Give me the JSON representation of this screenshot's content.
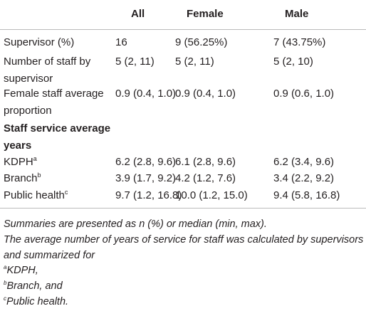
{
  "table": {
    "columns": [
      "All",
      "Female",
      "Male"
    ],
    "rows": [
      {
        "label": "Supervisor (%)",
        "values": [
          "16",
          "9 (56.25%)",
          "7 (43.75%)"
        ]
      },
      {
        "label": "Number of staff by supervisor",
        "values": [
          "5 (2, 11)",
          "5 (2, 11)",
          "5 (2, 10)"
        ]
      },
      {
        "label": "Female staff average proportion",
        "values": [
          "0.9 (0.4, 1.0)",
          "0.9 (0.4, 1.0)",
          "0.9 (0.6, 1.0)"
        ]
      },
      {
        "label": "Staff service average years",
        "section": true
      },
      {
        "label": "KDPH",
        "sup": "a",
        "values": [
          "6.2 (2.8, 9.6)",
          "6.1 (2.8, 9.6)",
          "6.2 (3.4, 9.6)"
        ]
      },
      {
        "label": "Branch",
        "sup": "b",
        "values": [
          "3.9 (1.7, 9.2)",
          "4.2 (1.2, 7.6)",
          "3.4 (2.2, 9.2)"
        ]
      },
      {
        "label": "Public health",
        "sup": "c",
        "values": [
          "9.7 (1.2, 16.8)",
          "10.0 (1.2, 15.0)",
          "9.4 (5.8, 16.8)"
        ]
      }
    ]
  },
  "footnotes": {
    "notes": [
      "Summaries are presented as n (%) or median (min, max).",
      "The average number of years of service for staff was calculated by supervisors and summarized for"
    ],
    "items": [
      {
        "mark": "a",
        "text": "KDPH,"
      },
      {
        "mark": "b",
        "text": "Branch, and"
      },
      {
        "mark": "c",
        "text": "Public health."
      }
    ]
  }
}
